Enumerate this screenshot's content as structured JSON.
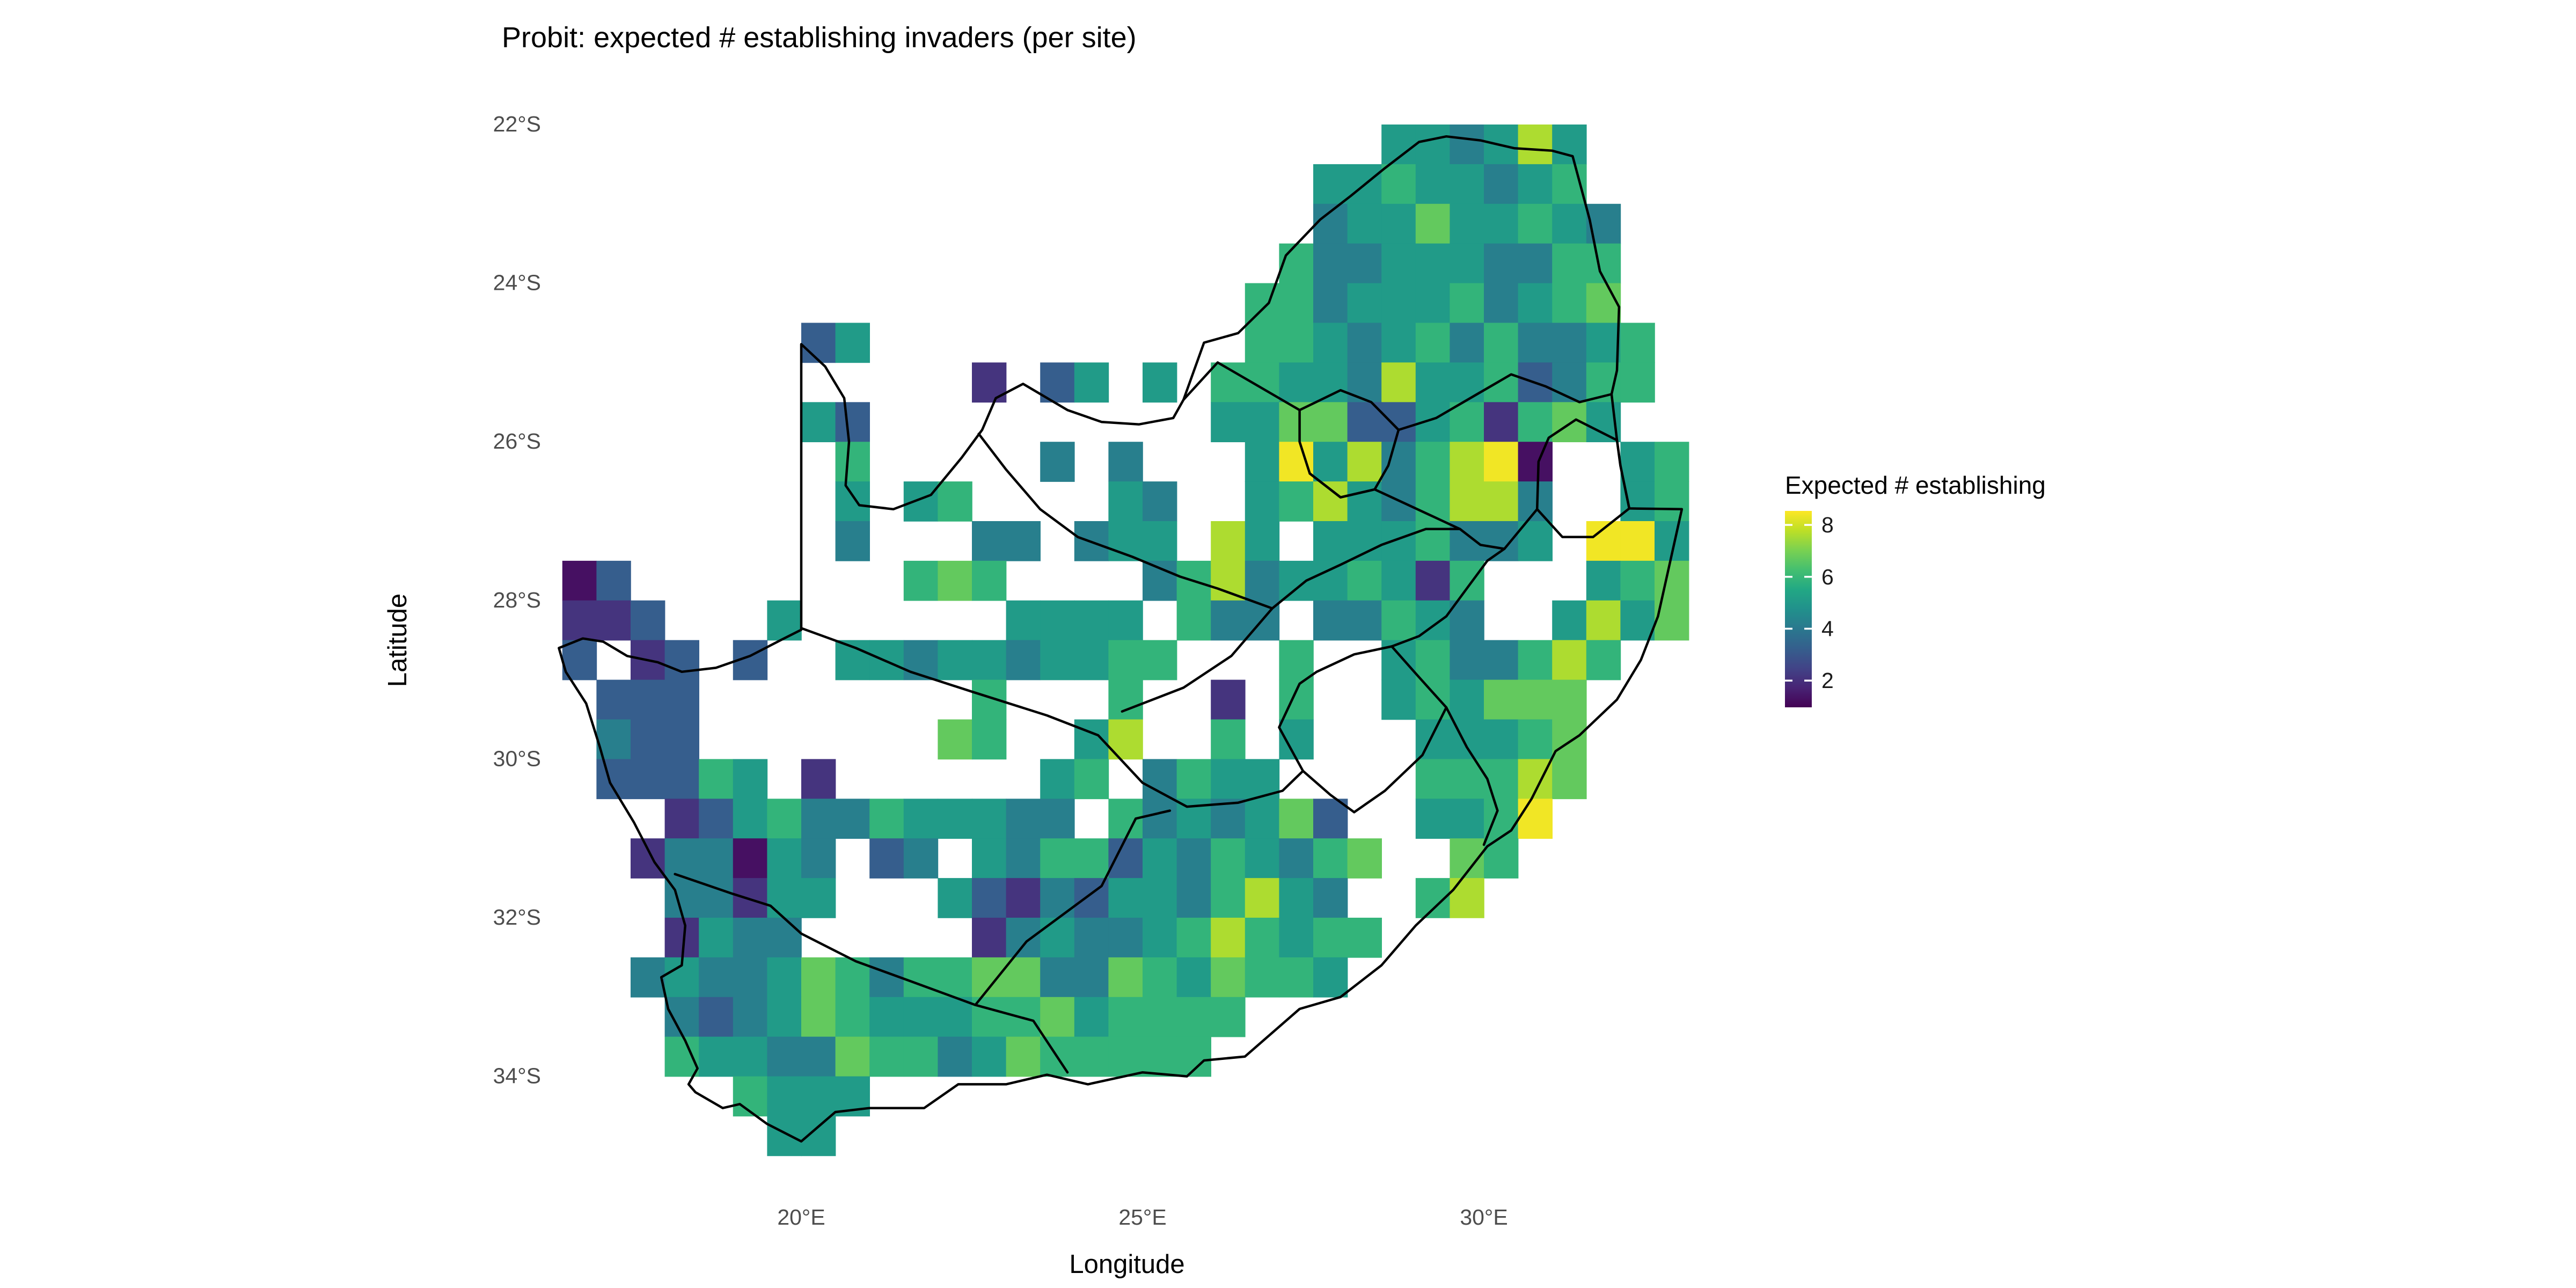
{
  "title": "Probit: expected # establishing invaders (per site)",
  "axes": {
    "x": {
      "label": "Longitude",
      "ticks": [
        {
          "label": "20°E",
          "lon": 20
        },
        {
          "label": "25°E",
          "lon": 25
        },
        {
          "label": "30°E",
          "lon": 30
        }
      ]
    },
    "y": {
      "label": "Latitude",
      "ticks": [
        {
          "label": "22°S",
          "lat": -22
        },
        {
          "label": "24°S",
          "lat": -24
        },
        {
          "label": "26°S",
          "lat": -26
        },
        {
          "label": "28°S",
          "lat": -28
        },
        {
          "label": "30°S",
          "lat": -30
        },
        {
          "label": "32°S",
          "lat": -32
        },
        {
          "label": "34°S",
          "lat": -34
        }
      ]
    }
  },
  "legend": {
    "title": "Expected # establishing",
    "ticks": [
      {
        "label": "8",
        "value": 8
      },
      {
        "label": "6",
        "value": 6
      },
      {
        "label": "4",
        "value": 4
      },
      {
        "label": "2",
        "value": 2
      }
    ],
    "domain": [
      0.97,
      8.54
    ],
    "colormap": "viridis"
  },
  "colors": {
    "background": "#ffffff",
    "border_line": "#000000",
    "tick_text": "#4d4d4d",
    "text": "#000000",
    "viridis": [
      "#440154",
      "#482475",
      "#414487",
      "#355f8d",
      "#2a788e",
      "#21918c",
      "#22a884",
      "#44bf70",
      "#7ad151",
      "#bddf26",
      "#fde725"
    ]
  },
  "chart_data": {
    "type": "heatmap",
    "title": "Probit: expected # establishing invaders (per site)",
    "xlabel": "Longitude",
    "ylabel": "Latitude",
    "xlim": [
      16.0,
      33.5
    ],
    "ylim": [
      -35.3,
      -21.7
    ],
    "legend_title": "Expected # establishing",
    "value_domain": [
      0.97,
      8.54
    ],
    "grid": {
      "note": "0.5 degree cells; rows listed north to south starting at lat -22.0; columns west to east starting at lon 16.5; digit = coded expected-number value, '.' = no data",
      "lon_start": 16.5,
      "lat_start": -22.0,
      "cell_deg": 0.5,
      "value_map": {
        "1": 1.3,
        "2": 2.1,
        "3": 3.2,
        "4": 4.2,
        "5": 5.1,
        "6": 5.9,
        "7": 6.7,
        "8": 7.6,
        "9": 8.4
      },
      "rows": [
        "........................554585...",
        "......................55655456...",
        "......................455755654..",
        ".....................6445554466..",
        "....................66455564567..",
        ".......35...........665456464456.",
        "............2.35.5.6655485563466.",
        ".......53..........557733562675..",
        "........6.....4.4...595846891..56",
        "........5.56....54..568546884..56",
        "........4...44.455.85.5556445.995",
        "13........676....4684556526...567",
        "223...5......5555.644.44654..5857",
        "3.23.3..5545545566...6..5644686..",
        ".333........6...6..2.6..565777...",
        ".433.......76..58..6.5...55567...",
        ".33365.2......56.4655....66687...",
        "...235644655544.6454573..5569....",
        "..244154.34.546635465467..76.....",
        "...44255...532435546854..68......",
        "...2544.....245445686566.........",
        "..454457646677447657665..........",
        "...43457655566756666.............",
        "...6554476645766666..............",
        ".....6555........................",
        "......55........................."
      ]
    },
    "borders": {
      "south_africa_outline": [
        [
          16.45,
          -28.6
        ],
        [
          16.8,
          -28.48
        ],
        [
          17.1,
          -28.52
        ],
        [
          17.45,
          -28.7
        ],
        [
          17.9,
          -28.78
        ],
        [
          18.25,
          -28.9
        ],
        [
          18.75,
          -28.85
        ],
        [
          19.25,
          -28.7
        ],
        [
          19.7,
          -28.5
        ],
        [
          20.0,
          -28.37
        ],
        [
          20.0,
          -24.77
        ],
        [
          20.35,
          -25.05
        ],
        [
          20.63,
          -25.45
        ],
        [
          20.7,
          -26.0
        ],
        [
          20.65,
          -26.55
        ],
        [
          20.85,
          -26.8
        ],
        [
          21.35,
          -26.85
        ],
        [
          21.9,
          -26.67
        ],
        [
          22.35,
          -26.2
        ],
        [
          22.65,
          -25.85
        ],
        [
          22.85,
          -25.45
        ],
        [
          23.25,
          -25.27
        ],
        [
          23.9,
          -25.6
        ],
        [
          24.4,
          -25.75
        ],
        [
          24.95,
          -25.78
        ],
        [
          25.45,
          -25.7
        ],
        [
          25.6,
          -25.47
        ],
        [
          25.9,
          -24.75
        ],
        [
          26.4,
          -24.63
        ],
        [
          26.85,
          -24.25
        ],
        [
          27.1,
          -23.65
        ],
        [
          27.6,
          -23.2
        ],
        [
          28.05,
          -22.9
        ],
        [
          28.55,
          -22.55
        ],
        [
          29.05,
          -22.22
        ],
        [
          29.45,
          -22.15
        ],
        [
          29.95,
          -22.2
        ],
        [
          30.45,
          -22.3
        ],
        [
          31.0,
          -22.33
        ],
        [
          31.3,
          -22.4
        ],
        [
          31.55,
          -23.2
        ],
        [
          31.7,
          -23.85
        ],
        [
          31.98,
          -24.3
        ],
        [
          31.95,
          -25.1
        ],
        [
          31.87,
          -25.4
        ],
        [
          31.95,
          -25.98
        ],
        [
          32.0,
          -26.3
        ],
        [
          32.13,
          -26.84
        ],
        [
          32.9,
          -26.85
        ],
        [
          32.55,
          -28.2
        ],
        [
          32.3,
          -28.75
        ],
        [
          31.95,
          -29.25
        ],
        [
          31.4,
          -29.7
        ],
        [
          31.05,
          -29.9
        ],
        [
          30.7,
          -30.5
        ],
        [
          30.4,
          -30.9
        ],
        [
          30.05,
          -31.1
        ],
        [
          29.55,
          -31.65
        ],
        [
          29.0,
          -32.1
        ],
        [
          28.5,
          -32.6
        ],
        [
          27.9,
          -33.0
        ],
        [
          27.3,
          -33.15
        ],
        [
          26.5,
          -33.75
        ],
        [
          25.9,
          -33.8
        ],
        [
          25.65,
          -34.0
        ],
        [
          25.0,
          -33.95
        ],
        [
          24.2,
          -34.1
        ],
        [
          23.6,
          -33.98
        ],
        [
          23.0,
          -34.1
        ],
        [
          22.3,
          -34.1
        ],
        [
          21.8,
          -34.4
        ],
        [
          21.0,
          -34.4
        ],
        [
          20.5,
          -34.45
        ],
        [
          20.0,
          -34.82
        ],
        [
          19.5,
          -34.6
        ],
        [
          19.1,
          -34.35
        ],
        [
          18.85,
          -34.4
        ],
        [
          18.45,
          -34.2
        ],
        [
          18.35,
          -34.1
        ],
        [
          18.48,
          -33.9
        ],
        [
          18.3,
          -33.55
        ],
        [
          18.05,
          -33.15
        ],
        [
          17.95,
          -32.75
        ],
        [
          18.25,
          -32.6
        ],
        [
          18.3,
          -32.1
        ],
        [
          18.15,
          -31.65
        ],
        [
          17.85,
          -31.3
        ],
        [
          17.55,
          -30.8
        ],
        [
          17.2,
          -30.3
        ],
        [
          17.05,
          -29.85
        ],
        [
          16.85,
          -29.3
        ],
        [
          16.55,
          -28.9
        ],
        [
          16.45,
          -28.6
        ]
      ],
      "lesotho": [
        [
          27.0,
          -29.6
        ],
        [
          27.3,
          -29.05
        ],
        [
          27.55,
          -28.9
        ],
        [
          28.1,
          -28.68
        ],
        [
          28.65,
          -28.58
        ],
        [
          29.0,
          -28.92
        ],
        [
          29.45,
          -29.35
        ],
        [
          29.1,
          -29.95
        ],
        [
          28.55,
          -30.4
        ],
        [
          28.1,
          -30.67
        ],
        [
          27.75,
          -30.45
        ],
        [
          27.35,
          -30.15
        ],
        [
          27.0,
          -29.6
        ]
      ],
      "eswatini": [
        [
          30.78,
          -26.85
        ],
        [
          30.8,
          -26.25
        ],
        [
          30.95,
          -25.95
        ],
        [
          31.35,
          -25.72
        ],
        [
          31.95,
          -25.98
        ],
        [
          32.0,
          -26.3
        ],
        [
          32.13,
          -26.84
        ],
        [
          31.6,
          -27.2
        ],
        [
          31.15,
          -27.2
        ],
        [
          30.78,
          -26.85
        ]
      ],
      "provinces": [
        [
          [
            18.15,
            -31.45
          ],
          [
            19.0,
            -31.7
          ],
          [
            19.55,
            -31.85
          ],
          [
            20.0,
            -32.2
          ],
          [
            20.8,
            -32.55
          ],
          [
            21.6,
            -32.8
          ],
          [
            22.55,
            -33.1
          ],
          [
            23.4,
            -33.3
          ],
          [
            23.9,
            -33.95
          ]
        ],
        [
          [
            22.55,
            -33.1
          ],
          [
            23.3,
            -32.3
          ],
          [
            24.4,
            -31.6
          ],
          [
            24.9,
            -30.75
          ],
          [
            25.4,
            -30.65
          ]
        ],
        [
          [
            20.0,
            -28.35
          ],
          [
            20.8,
            -28.6
          ],
          [
            21.6,
            -28.9
          ],
          [
            22.5,
            -29.15
          ],
          [
            23.6,
            -29.45
          ],
          [
            24.35,
            -29.7
          ],
          [
            25.0,
            -30.3
          ],
          [
            25.65,
            -30.6
          ],
          [
            26.4,
            -30.55
          ],
          [
            27.05,
            -30.4
          ],
          [
            27.35,
            -30.15
          ]
        ],
        [
          [
            24.7,
            -29.4
          ],
          [
            25.6,
            -29.1
          ],
          [
            26.3,
            -28.7
          ],
          [
            26.9,
            -28.1
          ],
          [
            27.4,
            -27.75
          ],
          [
            27.9,
            -27.55
          ],
          [
            28.5,
            -27.3
          ],
          [
            29.15,
            -27.1
          ],
          [
            29.65,
            -27.1
          ],
          [
            29.95,
            -27.3
          ],
          [
            30.3,
            -27.35
          ],
          [
            30.78,
            -26.85
          ]
        ],
        [
          [
            28.65,
            -28.58
          ],
          [
            29.05,
            -28.45
          ],
          [
            29.45,
            -28.2
          ],
          [
            29.75,
            -27.85
          ],
          [
            30.05,
            -27.5
          ],
          [
            30.3,
            -27.35
          ]
        ],
        [
          [
            29.45,
            -29.35
          ],
          [
            29.75,
            -29.85
          ],
          [
            30.05,
            -30.25
          ],
          [
            30.2,
            -30.65
          ],
          [
            30.0,
            -31.08
          ]
        ],
        [
          [
            27.3,
            -25.6
          ],
          [
            27.9,
            -25.35
          ],
          [
            28.35,
            -25.5
          ],
          [
            28.75,
            -25.85
          ],
          [
            28.6,
            -26.3
          ],
          [
            28.4,
            -26.6
          ],
          [
            27.9,
            -26.7
          ],
          [
            27.45,
            -26.4
          ],
          [
            27.3,
            -26.0
          ],
          [
            27.3,
            -25.6
          ]
        ],
        [
          [
            28.75,
            -25.85
          ],
          [
            29.3,
            -25.7
          ],
          [
            29.9,
            -25.4
          ],
          [
            30.4,
            -25.15
          ],
          [
            30.9,
            -25.3
          ],
          [
            31.4,
            -25.5
          ],
          [
            31.87,
            -25.4
          ]
        ],
        [
          [
            27.3,
            -25.6
          ],
          [
            26.7,
            -25.3
          ],
          [
            26.1,
            -25.0
          ],
          [
            25.6,
            -25.47
          ]
        ],
        [
          [
            22.6,
            -25.9
          ],
          [
            23.0,
            -26.35
          ],
          [
            23.5,
            -26.85
          ],
          [
            24.05,
            -27.2
          ],
          [
            24.85,
            -27.45
          ],
          [
            25.55,
            -27.7
          ],
          [
            26.1,
            -27.85
          ],
          [
            26.9,
            -28.1
          ]
        ],
        [
          [
            27.45,
            -26.4
          ],
          [
            27.9,
            -26.7
          ],
          [
            28.4,
            -26.6
          ],
          [
            28.9,
            -26.8
          ],
          [
            29.4,
            -27.0
          ],
          [
            29.65,
            -27.1
          ]
        ]
      ]
    }
  }
}
